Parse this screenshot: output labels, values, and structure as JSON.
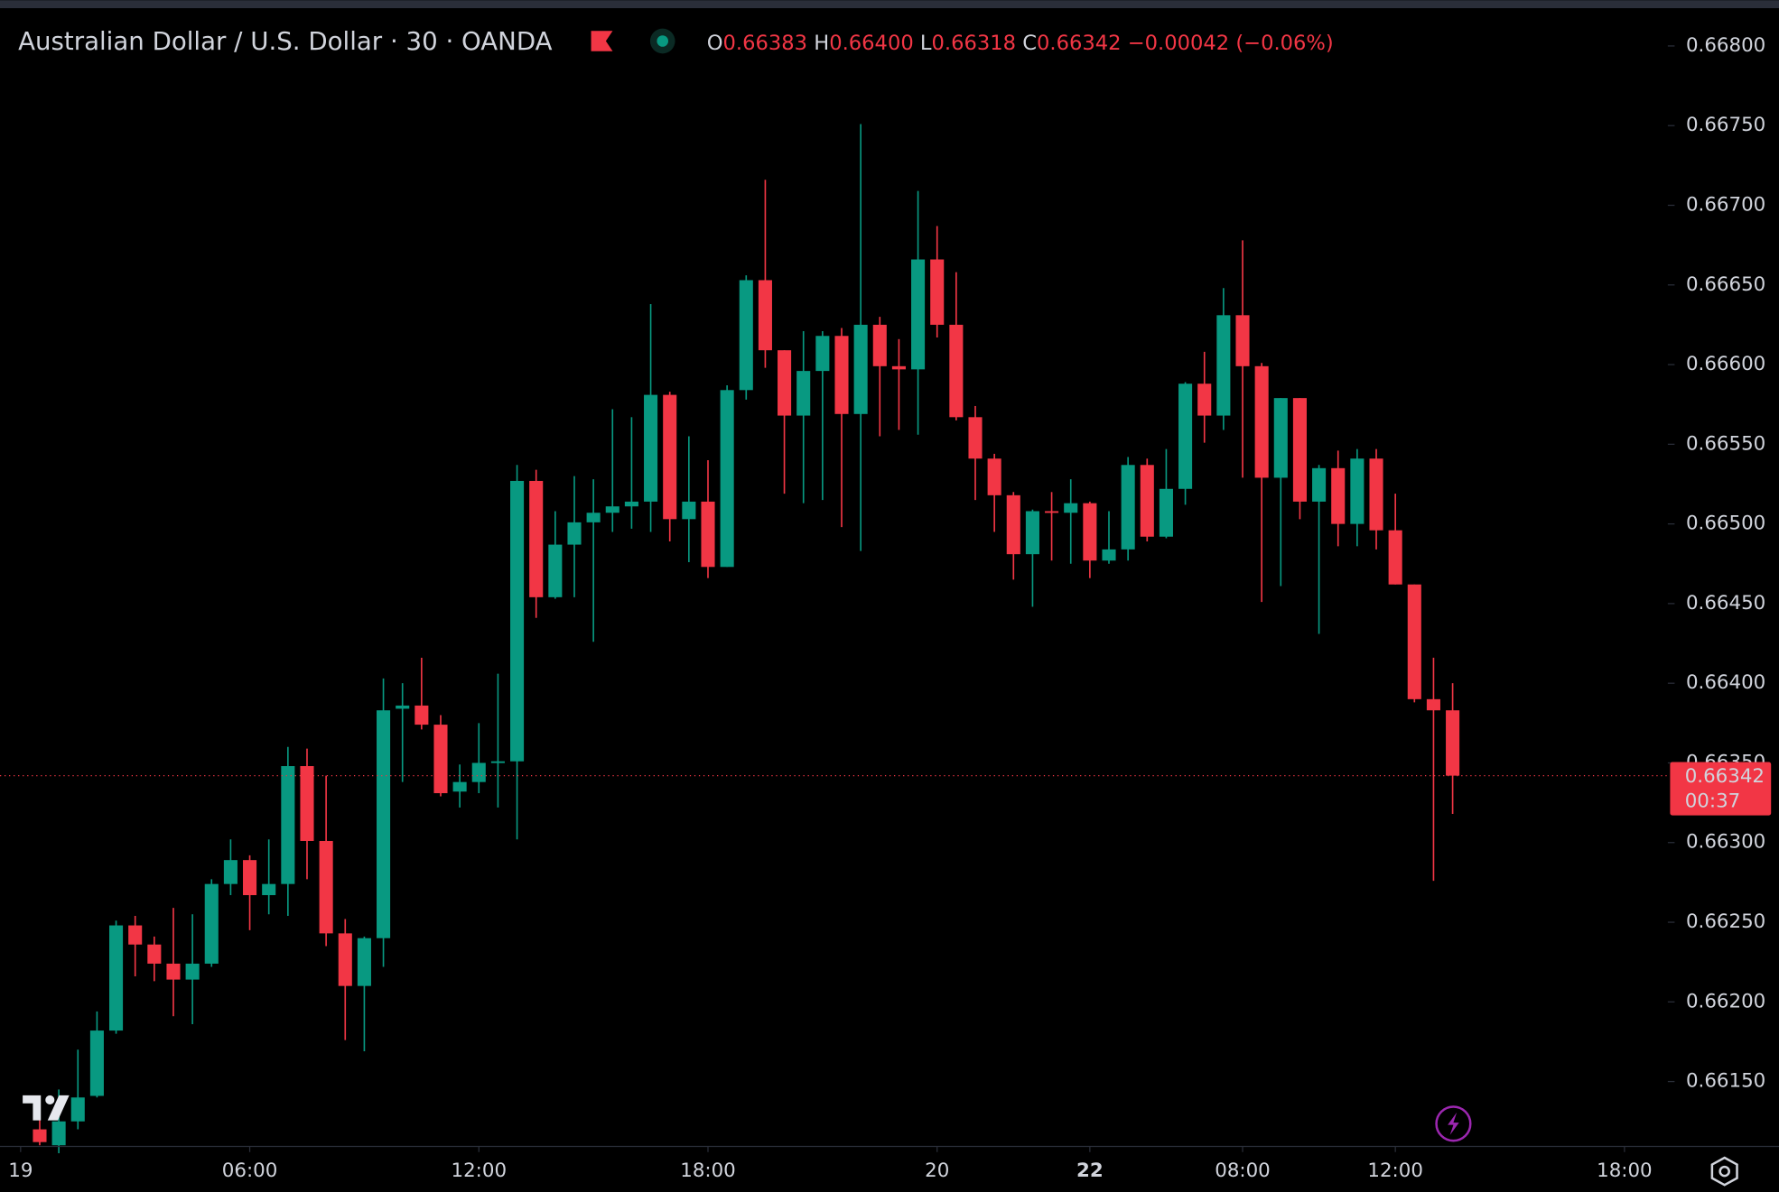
{
  "header": {
    "title": "Australian Dollar / U.S. Dollar · 30 · OANDA",
    "o": "O",
    "open": "0.66383",
    "h": "H",
    "high": "0.66400",
    "l": "L",
    "low": "0.66318",
    "c": "C",
    "close": "0.66342",
    "change": "−0.00042",
    "change_pct": "(−0.06%)"
  },
  "price_tag": {
    "price": "0.66342",
    "countdown": "00:37"
  },
  "chart_data": {
    "type": "candlestick",
    "up_color": "#089981",
    "down_color": "#f23645",
    "grid": false,
    "last_price_line": true,
    "open": [
      0.6612,
      0.6611,
      0.66125,
      0.66141,
      0.66182,
      0.66248,
      0.66236,
      0.66224,
      0.66214,
      0.66224,
      0.66274,
      0.66289,
      0.66267,
      0.66274,
      0.66348,
      0.66301,
      0.66243,
      0.6621,
      0.6624,
      0.66384,
      0.66386,
      0.66374,
      0.66332,
      0.66338,
      0.6635,
      0.66351,
      0.66527,
      0.66454,
      0.66487,
      0.66501,
      0.66507,
      0.66511,
      0.66514,
      0.66581,
      0.66503,
      0.66514,
      0.66473,
      0.66584,
      0.66653,
      0.66609,
      0.66568,
      0.66596,
      0.66618,
      0.66569,
      0.66625,
      0.66599,
      0.66597,
      0.66666,
      0.66625,
      0.66567,
      0.66541,
      0.66518,
      0.66481,
      0.66508,
      0.66507,
      0.66513,
      0.66477,
      0.66484,
      0.66537,
      0.66492,
      0.66522,
      0.66588,
      0.66568,
      0.66631,
      0.66599,
      0.66529,
      0.66579,
      0.66514,
      0.66535,
      0.665,
      0.66541,
      0.66496,
      0.66462,
      0.6639,
      0.66383
    ],
    "high": [
      0.66135,
      0.66145,
      0.6617,
      0.66194,
      0.66251,
      0.66254,
      0.66241,
      0.66259,
      0.66255,
      0.66277,
      0.66302,
      0.66292,
      0.66302,
      0.6636,
      0.66359,
      0.66342,
      0.66252,
      0.66241,
      0.66403,
      0.664,
      0.66416,
      0.6638,
      0.66349,
      0.66375,
      0.66406,
      0.66537,
      0.66534,
      0.66508,
      0.6653,
      0.66528,
      0.66572,
      0.66567,
      0.66638,
      0.66583,
      0.66555,
      0.6654,
      0.66587,
      0.66656,
      0.66716,
      0.66609,
      0.66621,
      0.66621,
      0.66623,
      0.66751,
      0.6663,
      0.66616,
      0.66709,
      0.66687,
      0.66658,
      0.66574,
      0.66544,
      0.6652,
      0.66509,
      0.6652,
      0.66528,
      0.66514,
      0.66508,
      0.66542,
      0.66541,
      0.66547,
      0.66589,
      0.66608,
      0.66648,
      0.66678,
      0.66601,
      0.66579,
      0.66579,
      0.66537,
      0.66546,
      0.66547,
      0.66547,
      0.66519,
      0.66462,
      0.66416,
      0.664
    ],
    "low": [
      0.6611,
      0.66105,
      0.6612,
      0.6614,
      0.6618,
      0.66216,
      0.66213,
      0.66191,
      0.66186,
      0.66222,
      0.66267,
      0.66245,
      0.66255,
      0.66254,
      0.66277,
      0.66235,
      0.66176,
      0.66169,
      0.66222,
      0.66338,
      0.66371,
      0.66329,
      0.66322,
      0.66331,
      0.66322,
      0.66302,
      0.66441,
      0.66453,
      0.66454,
      0.66426,
      0.66495,
      0.66497,
      0.66495,
      0.66489,
      0.66476,
      0.66466,
      0.66473,
      0.66578,
      0.66598,
      0.66519,
      0.66513,
      0.66515,
      0.66498,
      0.66483,
      0.66555,
      0.66559,
      0.66556,
      0.66617,
      0.66565,
      0.66515,
      0.66495,
      0.66465,
      0.66448,
      0.66477,
      0.66475,
      0.66466,
      0.66475,
      0.66477,
      0.66489,
      0.66491,
      0.66512,
      0.66551,
      0.66559,
      0.66529,
      0.66451,
      0.66461,
      0.66503,
      0.66431,
      0.66486,
      0.66486,
      0.66484,
      0.66462,
      0.66388,
      0.66276,
      0.66318
    ],
    "close": [
      0.66112,
      0.66125,
      0.6614,
      0.66182,
      0.66248,
      0.66236,
      0.66224,
      0.66214,
      0.66224,
      0.66274,
      0.66289,
      0.66267,
      0.66274,
      0.66348,
      0.66301,
      0.66243,
      0.6621,
      0.6624,
      0.66383,
      0.66386,
      0.66374,
      0.66331,
      0.66338,
      0.6635,
      0.66351,
      0.66527,
      0.66454,
      0.66487,
      0.66501,
      0.66507,
      0.66511,
      0.66514,
      0.66581,
      0.66503,
      0.66514,
      0.66473,
      0.66584,
      0.66653,
      0.66609,
      0.66568,
      0.66596,
      0.66618,
      0.66569,
      0.66625,
      0.66599,
      0.66597,
      0.66666,
      0.66625,
      0.66567,
      0.66541,
      0.66518,
      0.66481,
      0.66508,
      0.66507,
      0.66513,
      0.66477,
      0.66484,
      0.66537,
      0.66492,
      0.66522,
      0.66588,
      0.66568,
      0.66631,
      0.66599,
      0.66529,
      0.66579,
      0.66514,
      0.66535,
      0.665,
      0.66541,
      0.66496,
      0.66462,
      0.6639,
      0.66383,
      0.66342
    ],
    "ylim": [
      0.6611,
      0.66823
    ],
    "yticks": [
      {
        "value": 0.6615,
        "label": "0.66150"
      },
      {
        "value": 0.662,
        "label": "0.66200"
      },
      {
        "value": 0.6625,
        "label": "0.66250"
      },
      {
        "value": 0.663,
        "label": "0.66300"
      },
      {
        "value": 0.6635,
        "label": "0.66350"
      },
      {
        "value": 0.664,
        "label": "0.66400"
      },
      {
        "value": 0.6645,
        "label": "0.66450"
      },
      {
        "value": 0.665,
        "label": "0.66500"
      },
      {
        "value": 0.6655,
        "label": "0.66550"
      },
      {
        "value": 0.666,
        "label": "0.66600"
      },
      {
        "value": 0.6665,
        "label": "0.66650"
      },
      {
        "value": 0.667,
        "label": "0.66700"
      },
      {
        "value": 0.6675,
        "label": "0.66750"
      },
      {
        "value": 0.668,
        "label": "0.66800"
      }
    ],
    "xlim": [
      -2.08,
      85.27
    ],
    "xticks": [
      {
        "value": -1,
        "label": "19"
      },
      {
        "value": 11,
        "label": "06:00"
      },
      {
        "value": 23,
        "label": "12:00"
      },
      {
        "value": 35,
        "label": "18:00"
      },
      {
        "value": 47,
        "label": "20"
      },
      {
        "value": 55,
        "label": "22"
      },
      {
        "value": 63,
        "label": "08:00"
      },
      {
        "value": 71,
        "label": "12:00"
      },
      {
        "value": 83,
        "label": "18:00"
      }
    ]
  }
}
